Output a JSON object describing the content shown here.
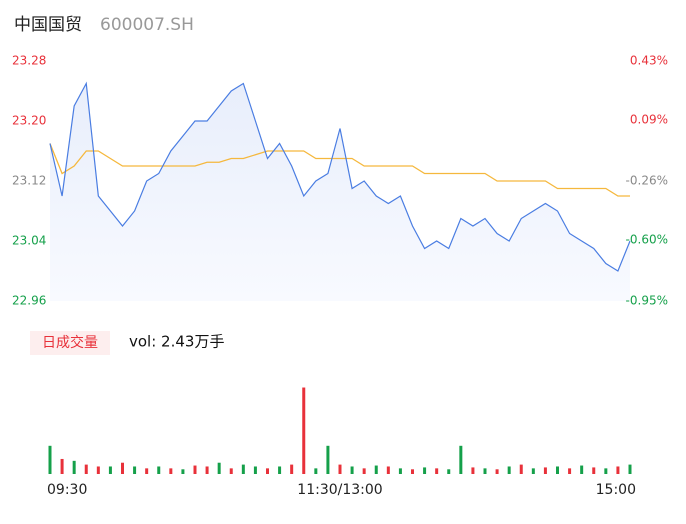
{
  "chart_data": {
    "type": "line",
    "title": "中国国贸",
    "subtitle": "600007.SH",
    "x": [
      0,
      5,
      10,
      15,
      20,
      25,
      30,
      35,
      40,
      45,
      50,
      55,
      60,
      65,
      70,
      75,
      80,
      85,
      90,
      95,
      100,
      105,
      110,
      115,
      120,
      125,
      130,
      135,
      140,
      145,
      150,
      155,
      160,
      165,
      170,
      175,
      180,
      185,
      190,
      195,
      200,
      205,
      210,
      215,
      220,
      225,
      230,
      235,
      240
    ],
    "xlim": [
      0,
      240
    ],
    "xticks": [
      {
        "value": 0,
        "label": "09:30"
      },
      {
        "value": 120,
        "label": "11:30/13:00"
      },
      {
        "value": 240,
        "label": "15:00"
      }
    ],
    "ylim": [
      22.96,
      23.28
    ],
    "yticks": [
      {
        "value": 23.28,
        "label": "23.28"
      },
      {
        "value": 23.2,
        "label": "23.20"
      },
      {
        "value": 23.12,
        "label": "23.12"
      },
      {
        "value": 23.04,
        "label": "23.04"
      },
      {
        "value": 22.96,
        "label": "22.96"
      }
    ],
    "ytick_colors": [
      "#e8313a",
      "#e8313a",
      "#888888",
      "#15a04a",
      "#15a04a"
    ],
    "y2lim": [
      -0.95,
      0.43
    ],
    "y2ticks": [
      {
        "value": 0.43,
        "label": "0.43%"
      },
      {
        "value": 0.09,
        "label": "0.09%"
      },
      {
        "value": -0.26,
        "label": "-0.26%"
      },
      {
        "value": -0.6,
        "label": "-0.60%"
      },
      {
        "value": -0.95,
        "label": "-0.95%"
      }
    ],
    "series": [
      {
        "color": "#4a7de2",
        "values": [
          23.17,
          23.1,
          23.22,
          23.25,
          23.1,
          23.08,
          23.06,
          23.08,
          23.12,
          23.13,
          23.16,
          23.18,
          23.2,
          23.2,
          23.22,
          23.24,
          23.25,
          23.2,
          23.15,
          23.17,
          23.14,
          23.1,
          23.12,
          23.13,
          23.19,
          23.11,
          23.12,
          23.1,
          23.09,
          23.1,
          23.06,
          23.03,
          23.04,
          23.03,
          23.07,
          23.06,
          23.07,
          23.05,
          23.04,
          23.07,
          23.08,
          23.09,
          23.08,
          23.05,
          23.04,
          23.03,
          23.01,
          23.0,
          23.04
        ]
      },
      {
        "color": "#f5b83d",
        "values": [
          23.17,
          23.13,
          23.14,
          23.16,
          23.16,
          23.15,
          23.14,
          23.14,
          23.14,
          23.14,
          23.14,
          23.14,
          23.14,
          23.145,
          23.145,
          23.15,
          23.15,
          23.155,
          23.16,
          23.16,
          23.16,
          23.16,
          23.15,
          23.15,
          23.15,
          23.15,
          23.14,
          23.14,
          23.14,
          23.14,
          23.14,
          23.13,
          23.13,
          23.13,
          23.13,
          23.13,
          23.13,
          23.12,
          23.12,
          23.12,
          23.12,
          23.12,
          23.11,
          23.11,
          23.11,
          23.11,
          23.11,
          23.1,
          23.1
        ]
      }
    ],
    "volume": {
      "legend": "日成交量",
      "label": "vol: 2.43万手",
      "ylim": [
        0,
        100
      ],
      "values": [
        30,
        16,
        14,
        10,
        8,
        8,
        12,
        8,
        6,
        8,
        6,
        5,
        9,
        8,
        12,
        6,
        10,
        8,
        6,
        8,
        10,
        92,
        6,
        30,
        10,
        8,
        6,
        9,
        8,
        6,
        5,
        7,
        6,
        5,
        30,
        7,
        6,
        5,
        8,
        10,
        6,
        7,
        8,
        6,
        9,
        7,
        6,
        8,
        10
      ],
      "colors": [
        "#15a04a",
        "#e8313a",
        "#15a04a",
        "#e8313a",
        "#e8313a",
        "#15a04a",
        "#e8313a",
        "#15a04a",
        "#e8313a",
        "#15a04a",
        "#e8313a",
        "#15a04a",
        "#e8313a",
        "#e8313a",
        "#15a04a",
        "#e8313a",
        "#15a04a",
        "#15a04a",
        "#e8313a",
        "#15a04a",
        "#e8313a",
        "#e8313a",
        "#15a04a",
        "#15a04a",
        "#e8313a",
        "#15a04a",
        "#e8313a",
        "#15a04a",
        "#e8313a",
        "#15a04a",
        "#e8313a",
        "#15a04a",
        "#e8313a",
        "#15a04a",
        "#15a04a",
        "#e8313a",
        "#15a04a",
        "#e8313a",
        "#15a04a",
        "#e8313a",
        "#15a04a",
        "#e8313a",
        "#15a04a",
        "#e8313a",
        "#15a04a",
        "#e8313a",
        "#15a04a",
        "#e8313a",
        "#15a04a"
      ]
    }
  }
}
